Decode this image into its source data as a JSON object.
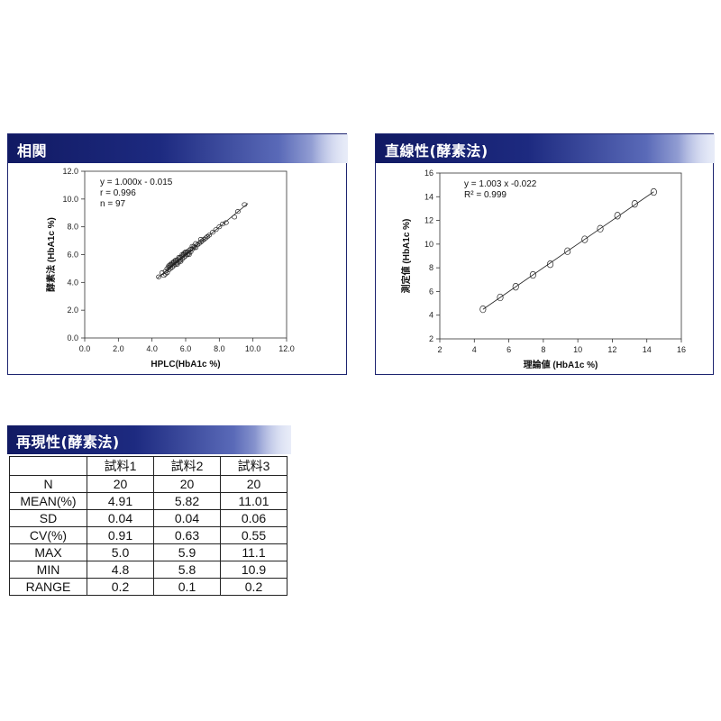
{
  "panels": {
    "correlation": {
      "title": "相関",
      "chart_data": {
        "type": "scatter",
        "xlabel": "HPLC(HbA1c %)",
        "ylabel": "酵素法 (HbA1c %)",
        "xlim": [
          0,
          12
        ],
        "ylim": [
          0,
          12
        ],
        "xticks": [
          "0.0",
          "2.0",
          "4.0",
          "6.0",
          "8.0",
          "10.0",
          "12.0"
        ],
        "yticks": [
          "0.0",
          "2.0",
          "4.0",
          "6.0",
          "8.0",
          "10.0",
          "12.0"
        ],
        "annotations": [
          "y = 1.000x - 0.015",
          "r = 0.996",
          "n = 97"
        ],
        "fit_line": {
          "slope": 1.0,
          "intercept": -0.015,
          "x_range": [
            4.3,
            9.7
          ]
        },
        "points": [
          [
            4.4,
            4.4
          ],
          [
            4.6,
            4.7
          ],
          [
            4.7,
            4.5
          ],
          [
            4.8,
            4.8
          ],
          [
            4.9,
            5.0
          ],
          [
            4.9,
            4.7
          ],
          [
            5.0,
            5.1
          ],
          [
            5.0,
            4.9
          ],
          [
            5.1,
            5.0
          ],
          [
            5.1,
            5.2
          ],
          [
            5.2,
            5.1
          ],
          [
            5.2,
            5.3
          ],
          [
            5.3,
            5.2
          ],
          [
            5.3,
            5.4
          ],
          [
            5.4,
            5.3
          ],
          [
            5.4,
            5.5
          ],
          [
            5.5,
            5.4
          ],
          [
            5.5,
            5.6
          ],
          [
            5.6,
            5.5
          ],
          [
            5.6,
            5.7
          ],
          [
            5.7,
            5.6
          ],
          [
            5.7,
            5.8
          ],
          [
            5.8,
            5.7
          ],
          [
            5.8,
            5.9
          ],
          [
            5.9,
            5.8
          ],
          [
            5.9,
            6.0
          ],
          [
            6.0,
            5.9
          ],
          [
            6.0,
            6.1
          ],
          [
            6.1,
            6.0
          ],
          [
            6.1,
            6.2
          ],
          [
            6.2,
            6.1
          ],
          [
            6.2,
            6.3
          ],
          [
            6.3,
            6.2
          ],
          [
            6.4,
            6.4
          ],
          [
            6.5,
            6.5
          ],
          [
            6.5,
            6.6
          ],
          [
            6.6,
            6.5
          ],
          [
            6.7,
            6.7
          ],
          [
            6.8,
            6.8
          ],
          [
            6.9,
            6.9
          ],
          [
            7.0,
            7.0
          ],
          [
            7.1,
            7.1
          ],
          [
            7.2,
            7.2
          ],
          [
            7.3,
            7.3
          ],
          [
            7.4,
            7.4
          ],
          [
            7.6,
            7.6
          ],
          [
            7.8,
            7.8
          ],
          [
            8.0,
            8.0
          ],
          [
            8.2,
            8.2
          ],
          [
            8.4,
            8.3
          ],
          [
            8.9,
            8.7
          ],
          [
            9.1,
            9.1
          ],
          [
            9.5,
            9.6
          ],
          [
            5.0,
            5.2
          ],
          [
            5.2,
            5.4
          ],
          [
            5.4,
            5.6
          ],
          [
            5.6,
            5.8
          ],
          [
            5.8,
            6.0
          ],
          [
            6.0,
            6.2
          ],
          [
            6.3,
            6.4
          ],
          [
            6.6,
            6.8
          ],
          [
            6.9,
            7.1
          ],
          [
            4.8,
            4.6
          ],
          [
            5.1,
            5.3
          ],
          [
            5.3,
            5.5
          ],
          [
            5.5,
            5.3
          ],
          [
            5.7,
            5.5
          ],
          [
            5.9,
            6.1
          ],
          [
            6.2,
            6.0
          ],
          [
            6.4,
            6.6
          ]
        ]
      }
    },
    "linearity": {
      "title": "直線性(酵素法)",
      "chart_data": {
        "type": "scatter",
        "xlabel": "理論値 (HbA1c %)",
        "ylabel": "測定値 (HbA1c %)",
        "xlim": [
          2,
          16
        ],
        "ylim": [
          2,
          16
        ],
        "xticks": [
          "2",
          "4",
          "6",
          "8",
          "10",
          "12",
          "14",
          "16"
        ],
        "yticks": [
          "2",
          "4",
          "6",
          "8",
          "10",
          "12",
          "14",
          "16"
        ],
        "annotations": [
          "y = 1.003 x -0.022",
          "R² = 0.999"
        ],
        "fit_line": {
          "slope": 1.003,
          "intercept": -0.022,
          "x_range": [
            4.5,
            14.4
          ]
        },
        "points": [
          [
            4.5,
            4.5
          ],
          [
            5.5,
            5.5
          ],
          [
            6.4,
            6.4
          ],
          [
            7.4,
            7.4
          ],
          [
            8.4,
            8.3
          ],
          [
            9.4,
            9.4
          ],
          [
            10.4,
            10.4
          ],
          [
            11.3,
            11.3
          ],
          [
            12.3,
            12.4
          ],
          [
            13.3,
            13.4
          ],
          [
            14.4,
            14.4
          ]
        ]
      }
    },
    "reproducibility": {
      "title": "再現性(酵素法)",
      "table": {
        "columns": [
          "",
          "試料1",
          "試料2",
          "試料3"
        ],
        "rows": [
          {
            "label": "N",
            "values": [
              "20",
              "20",
              "20"
            ]
          },
          {
            "label": "MEAN(%)",
            "values": [
              "4.91",
              "5.82",
              "11.01"
            ]
          },
          {
            "label": "SD",
            "values": [
              "0.04",
              "0.04",
              "0.06"
            ]
          },
          {
            "label": "CV(%)",
            "values": [
              "0.91",
              "0.63",
              "0.55"
            ]
          },
          {
            "label": "MAX",
            "values": [
              "5.0",
              "5.9",
              "11.1"
            ]
          },
          {
            "label": "MIN",
            "values": [
              "4.8",
              "5.8",
              "10.9"
            ]
          },
          {
            "label": "RANGE",
            "values": [
              "0.2",
              "0.1",
              "0.2"
            ]
          }
        ]
      }
    }
  }
}
